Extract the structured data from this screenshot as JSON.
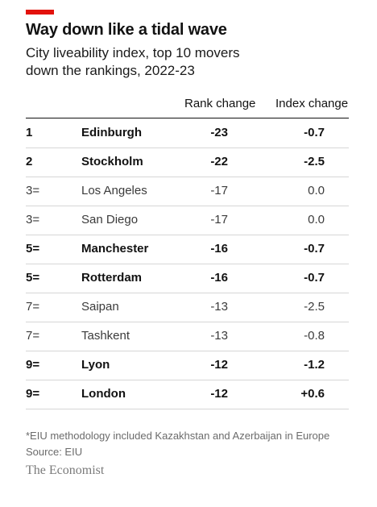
{
  "header": {
    "title": "Way down like a tidal wave",
    "subtitle_lines": [
      "City liveability index, top 10 movers",
      "down the rankings, 2022-23"
    ]
  },
  "chart_data": {
    "type": "table",
    "columns": [
      "",
      "",
      "Rank change",
      "Index change"
    ],
    "rows": [
      {
        "position": "1",
        "city": "Edinburgh",
        "rank_change": "-23",
        "index_change": "-0.7",
        "bold": true
      },
      {
        "position": "2",
        "city": "Stockholm",
        "rank_change": "-22",
        "index_change": "-2.5",
        "bold": true
      },
      {
        "position": "3=",
        "city": "Los Angeles",
        "rank_change": "-17",
        "index_change": "0.0",
        "bold": false
      },
      {
        "position": "3=",
        "city": "San Diego",
        "rank_change": "-17",
        "index_change": "0.0",
        "bold": false
      },
      {
        "position": "5=",
        "city": "Manchester",
        "rank_change": "-16",
        "index_change": "-0.7",
        "bold": true
      },
      {
        "position": "5=",
        "city": "Rotterdam",
        "rank_change": "-16",
        "index_change": "-0.7",
        "bold": true
      },
      {
        "position": "7=",
        "city": "Saipan",
        "rank_change": "-13",
        "index_change": "-2.5",
        "bold": false
      },
      {
        "position": "7=",
        "city": "Tashkent",
        "rank_change": "-13",
        "index_change": "-0.8",
        "bold": false
      },
      {
        "position": "9=",
        "city": "Lyon",
        "rank_change": "-12",
        "index_change": "-1.2",
        "bold": true
      },
      {
        "position": "9=",
        "city": "London",
        "rank_change": "-12",
        "index_change": "+0.6",
        "bold": true
      }
    ]
  },
  "footer": {
    "note": "*EIU methodology included Kazakhstan and Azerbaijan in Europe",
    "source": "Source: EIU",
    "brand": "The Economist"
  },
  "colors": {
    "accent": "#e3120b",
    "rule": "#d6d6d6",
    "text": "#121212",
    "footnote": "#6b6b6b"
  }
}
